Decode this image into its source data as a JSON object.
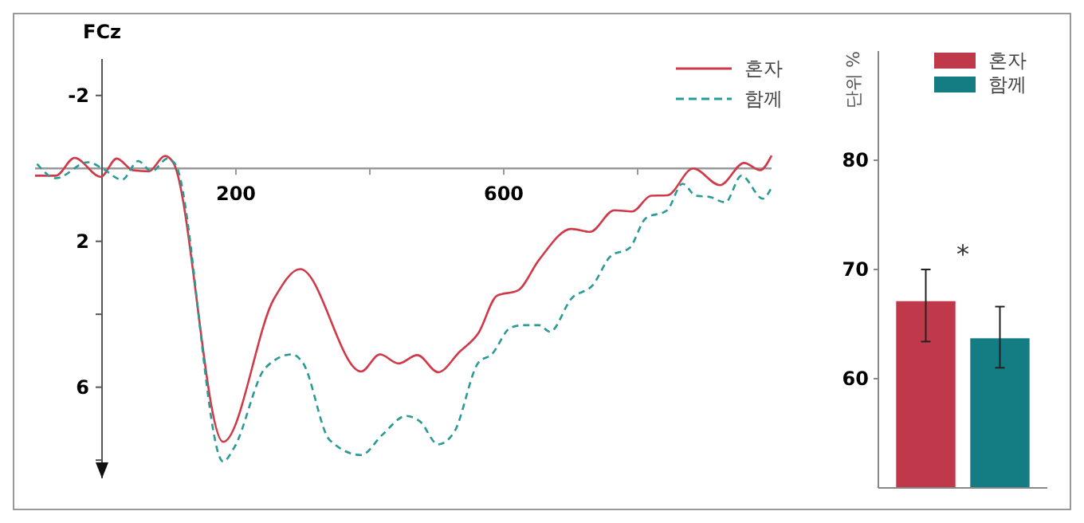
{
  "chart_data": [
    {
      "type": "line",
      "ylabel": "FCz",
      "xlim": [
        -100,
        1000
      ],
      "xticks": [
        {
          "value": 200,
          "label": "200"
        },
        {
          "value": 400,
          "label": null
        },
        {
          "value": 600,
          "label": "600"
        },
        {
          "value": 800,
          "label": null
        }
      ],
      "ylim": [
        8.5,
        -3
      ],
      "yticks": [
        -2,
        {
          "value": 2,
          "label": "2"
        },
        {
          "value": 4,
          "label": null
        },
        6,
        {
          "value": 8,
          "label": null
        }
      ],
      "legend": "top right",
      "series": [
        {
          "name": "혼자",
          "color": "#d03a48",
          "line_style": "solid",
          "x": [
            -100,
            -69,
            -41,
            -2,
            22,
            46,
            70,
            94,
            106,
            181,
            257,
            296,
            387,
            415,
            443,
            471,
            502,
            534,
            562,
            590,
            621,
            653,
            701,
            729,
            765,
            792,
            820,
            844,
            883,
            923,
            959,
            983,
            1000
          ],
          "values": [
            0.2,
            0.2,
            -0.29,
            0.23,
            -0.27,
            0.05,
            0.08,
            -0.34,
            -0.17,
            7.5,
            3.57,
            2.76,
            5.57,
            5.1,
            5.35,
            5.12,
            5.59,
            5.03,
            4.52,
            3.49,
            3.35,
            2.5,
            1.66,
            1.74,
            1.15,
            1.18,
            0.75,
            0.74,
            0,
            0.46,
            -0.15,
            0.05,
            -0.35
          ]
        },
        {
          "name": "함께",
          "color": "#2a9a96",
          "line_style": "dashed",
          "x": [
            -97,
            -69,
            -21,
            2,
            30,
            54,
            74,
            98,
            110,
            181,
            197,
            244,
            284,
            300,
            340,
            387,
            419,
            454,
            475,
            502,
            526,
            562,
            582,
            610,
            629,
            653,
            669,
            701,
            733,
            760,
            788,
            812,
            844,
            867,
            887,
            907,
            931,
            955,
            987,
            1000
          ],
          "values": [
            -0.12,
            0.27,
            -0.17,
            0.02,
            0.31,
            -0.2,
            0.08,
            -0.27,
            -0.1,
            8.04,
            7.67,
            5.47,
            5.1,
            5.33,
            7.45,
            7.86,
            7.3,
            6.79,
            6.94,
            7.57,
            7.23,
            5.33,
            5.1,
            4.37,
            4.3,
            4.3,
            4.48,
            3.57,
            3.2,
            2.4,
            2.18,
            1.37,
            1.15,
            0.42,
            0.75,
            0.78,
            0.93,
            0.2,
            0.83,
            0.52
          ]
        }
      ]
    },
    {
      "type": "bar",
      "ylabel": "단위 %",
      "categories": [
        null
      ],
      "ylim": [
        50,
        90
      ],
      "yticks": [
        60,
        70,
        80
      ],
      "legend": "top",
      "annotations": [
        "*"
      ],
      "series": [
        {
          "name": "혼자",
          "color": "#c0394a",
          "values": [
            67.1
          ],
          "errors": [
            [
              63.4,
              70.0
            ]
          ]
        },
        {
          "name": "함께",
          "color": "#147d84",
          "values": [
            63.7
          ],
          "errors": [
            [
              61.0,
              66.6
            ]
          ]
        }
      ]
    }
  ]
}
